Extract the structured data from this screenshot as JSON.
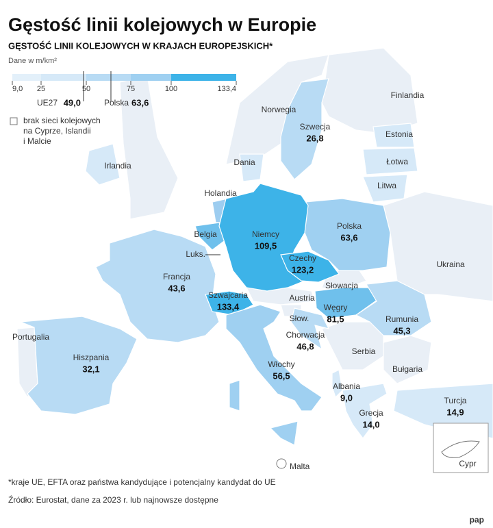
{
  "header": {
    "title": "Gęstość linii kolejowych w Europie",
    "subtitle": "GĘSTOŚĆ LINII KOLEJOWYCH W KRAJACH EUROPEJSKICH*",
    "unit": "Dane w m/km²"
  },
  "legend": {
    "ticks": [
      "9,0",
      "25",
      "50",
      "75",
      "100",
      "133,4"
    ],
    "markers": [
      {
        "label": "UE27",
        "value": "49,0"
      },
      {
        "label": "Polska",
        "value": "63,6"
      }
    ],
    "no_data": [
      "brak sieci kolejowych",
      "na Cyprze, Islandii",
      "i Malcie"
    ]
  },
  "countries": [
    {
      "name": "Szwecja",
      "value": "26,8"
    },
    {
      "name": "Polska",
      "value": "63,6"
    },
    {
      "name": "Niemcy",
      "value": "109,5"
    },
    {
      "name": "Czechy",
      "value": "123,2"
    },
    {
      "name": "Francja",
      "value": "43,6"
    },
    {
      "name": "Szwajcaria",
      "value": "133,4"
    },
    {
      "name": "Węgry",
      "value": "81,5"
    },
    {
      "name": "Rumunia",
      "value": "45,3"
    },
    {
      "name": "Chorwacja",
      "value": "46,8"
    },
    {
      "name": "Hiszpania",
      "value": "32,1"
    },
    {
      "name": "Włochy",
      "value": "56,5"
    },
    {
      "name": "Albania",
      "value": "9,0"
    },
    {
      "name": "Grecja",
      "value": "14,0"
    },
    {
      "name": "Turcja",
      "value": "14,9"
    }
  ],
  "labels": [
    "Finlandia",
    "Norwegia",
    "Estonia",
    "Dania",
    "Łotwa",
    "Irlandia",
    "Litwa",
    "Holandia",
    "Belgia",
    "Luks.",
    "Ukraina",
    "Słowacja",
    "Austria",
    "Portugalia",
    "Słow.",
    "Serbia",
    "Bułgaria",
    "Malta",
    "Cypr"
  ],
  "footer": {
    "note": "*kraje UE, EFTA oraz państwa kandydujące i potencjalny kandydat do UE",
    "source": "Źródło: Eurostat, dane za 2023 r. lub najnowsze dostępne",
    "logo": "pap"
  }
}
